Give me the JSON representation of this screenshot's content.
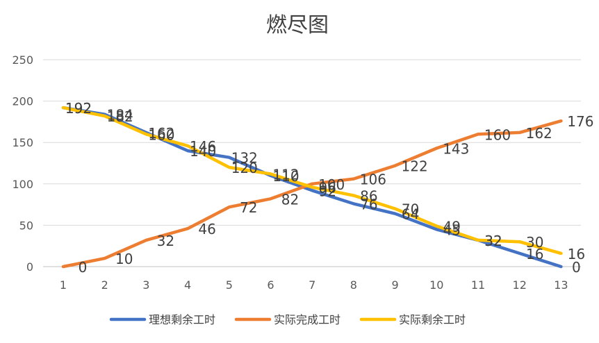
{
  "chart_data": {
    "type": "line",
    "title": "燃尽图",
    "xlabel": "",
    "ylabel": "",
    "categories": [
      "1",
      "2",
      "3",
      "4",
      "5",
      "6",
      "7",
      "8",
      "9",
      "10",
      "11",
      "12",
      "13"
    ],
    "ylim": [
      0,
      250
    ],
    "yticks": [
      0,
      50,
      100,
      150,
      200,
      250
    ],
    "grid": true,
    "legend_position": "bottom",
    "series": [
      {
        "name": "理想剩余工时",
        "color": "#4472C4",
        "values": [
          192,
          184,
          162,
          140,
          132,
          110,
          92,
          76,
          64,
          45,
          32,
          16,
          0
        ],
        "labels": [
          "192",
          "184",
          "162",
          "140",
          "132",
          "110",
          "92",
          "76",
          "64",
          "45",
          "32",
          "16",
          "0"
        ]
      },
      {
        "name": "实际完成工时",
        "color": "#ED7D31",
        "values": [
          0,
          10,
          32,
          46,
          72,
          82,
          100,
          106,
          122,
          143,
          160,
          162,
          176
        ],
        "labels": [
          "0",
          "10",
          "32",
          "46",
          "72",
          "82",
          "100",
          "106",
          "122",
          "143",
          "160",
          "162",
          "176"
        ]
      },
      {
        "name": "实际剩余工时",
        "color": "#FFC000",
        "values": [
          192,
          182,
          160,
          146,
          120,
          112,
          96,
          86,
          70,
          49,
          32,
          30,
          16
        ],
        "labels": [
          "192",
          "182",
          "160",
          "146",
          "120",
          "112",
          "96",
          "86",
          "70",
          "49",
          "32",
          "30",
          "16"
        ]
      }
    ]
  }
}
